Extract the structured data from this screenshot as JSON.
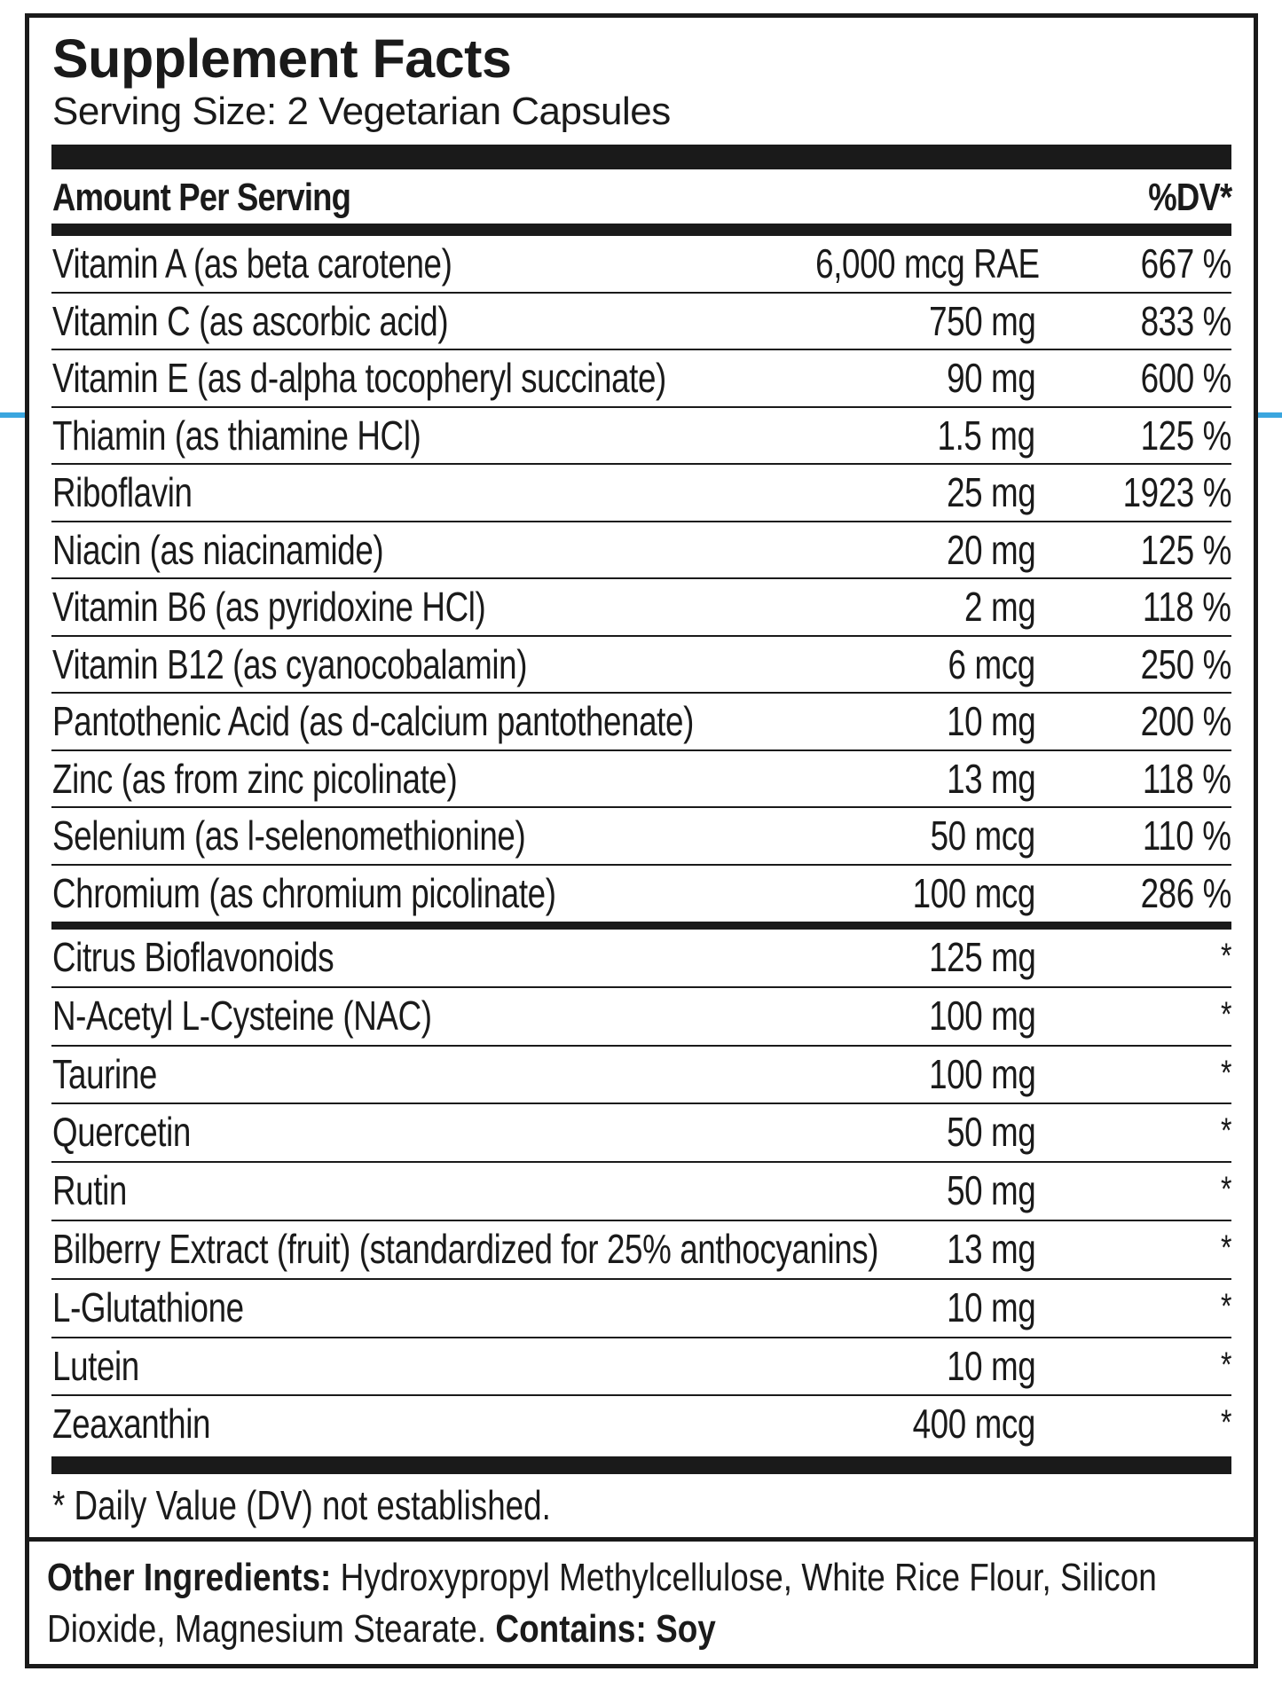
{
  "label": {
    "title": "Supplement Facts",
    "serving_size": "Serving Size: 2 Vegetarian Capsules",
    "header": {
      "amount_label": "Amount Per Serving",
      "dv_label": "%DV*"
    },
    "vitamins_minerals": [
      {
        "name": "Vitamin A (as beta carotene)",
        "amount": "6,000 mcg RAE",
        "dv": "667 %"
      },
      {
        "name": "Vitamin C (as ascorbic acid)",
        "amount": "750 mg",
        "dv": "833 %"
      },
      {
        "name": "Vitamin E (as d-alpha tocopheryl succinate)",
        "amount": "90 mg",
        "dv": "600 %"
      },
      {
        "name": "Thiamin (as thiamine HCl)",
        "amount": "1.5 mg",
        "dv": "125 %"
      },
      {
        "name": "Riboflavin",
        "amount": "25 mg",
        "dv": "1923 %"
      },
      {
        "name": "Niacin (as niacinamide)",
        "amount": "20 mg",
        "dv": "125 %"
      },
      {
        "name": "Vitamin B6 (as pyridoxine HCl)",
        "amount": "2 mg",
        "dv": "118 %"
      },
      {
        "name": "Vitamin B12 (as cyanocobalamin)",
        "amount": "6 mcg",
        "dv": "250 %"
      },
      {
        "name": "Pantothenic Acid (as d-calcium pantothenate)",
        "amount": "10 mg",
        "dv": "200 %"
      },
      {
        "name": "Zinc (as from zinc picolinate)",
        "amount": "13 mg",
        "dv": "118 %"
      },
      {
        "name": "Selenium (as l-selenomethionine)",
        "amount": "50 mcg",
        "dv": "110 %"
      },
      {
        "name": "Chromium (as chromium picolinate)",
        "amount": "100 mcg",
        "dv": "286 %"
      }
    ],
    "other_actives": [
      {
        "name": "Citrus Bioflavonoids",
        "amount": "125 mg",
        "dv": "*"
      },
      {
        "name": "N-Acetyl L-Cysteine (NAC)",
        "amount": "100 mg",
        "dv": "*"
      },
      {
        "name": "Taurine",
        "amount": "100 mg",
        "dv": "*"
      },
      {
        "name": "Quercetin",
        "amount": "50 mg",
        "dv": "*"
      },
      {
        "name": "Rutin",
        "amount": "50 mg",
        "dv": "*"
      },
      {
        "name": "Bilberry Extract (fruit) (standardized for 25% anthocyanins)",
        "amount": "13 mg",
        "dv": "*"
      },
      {
        "name": "L-Glutathione",
        "amount": "10 mg",
        "dv": "*"
      },
      {
        "name": "Lutein",
        "amount": "10 mg",
        "dv": "*"
      },
      {
        "name": "Zeaxanthin",
        "amount": "400 mcg",
        "dv": "*"
      }
    ],
    "footnote": "* Daily Value (DV) not established.",
    "other_ingredients": {
      "label": "Other Ingredients:",
      "text": " Hydroxypropyl Methylcellulose, White Rice Flour, Silicon Dioxide, Magnesium Stearate. ",
      "contains_label": "Contains: Soy"
    }
  },
  "colors": {
    "ink": "#1a1a1a",
    "accent": "#3aa6df",
    "background": "#ffffff"
  }
}
